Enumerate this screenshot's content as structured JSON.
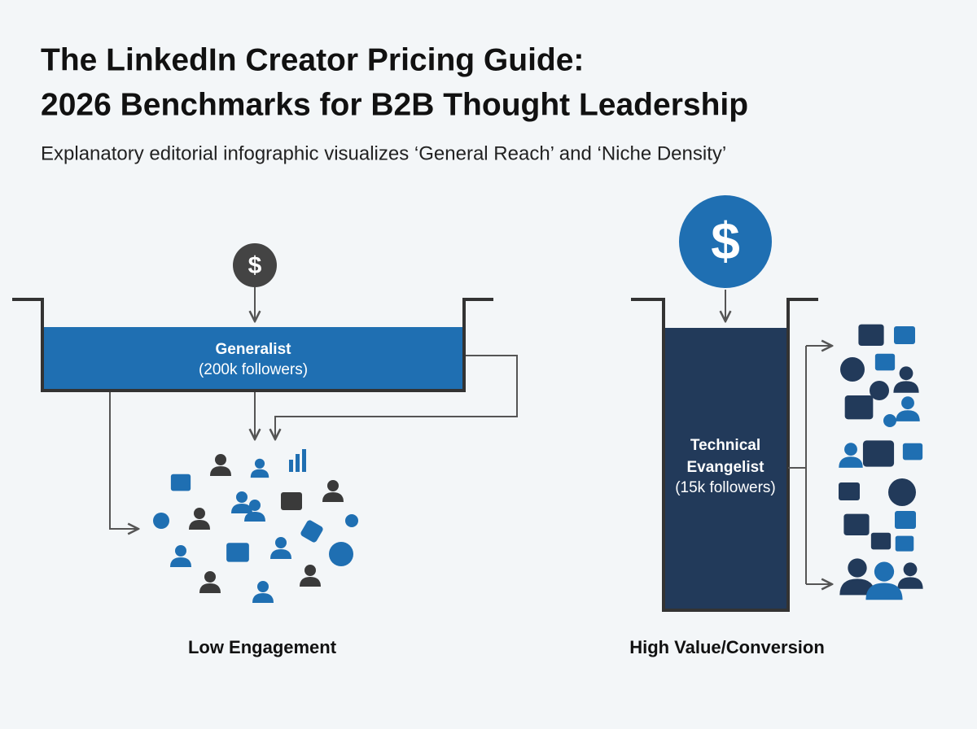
{
  "header": {
    "title_lines": [
      "The LinkedIn Creator Pricing Guide:",
      "2026 Benchmarks for B2B Thought Leadership"
    ],
    "subtitle": "Explanatory editorial infographic visualizes ‘General Reach’ and ‘Niche Density’"
  },
  "left": {
    "icon": "$",
    "label": "Generalist",
    "followers": "(200k followers)",
    "caption": "Low Engagement"
  },
  "right": {
    "icon": "$",
    "label_lines": [
      "Technical",
      "Evangelist"
    ],
    "followers": "(15k followers)",
    "caption": "High Value/Conversion"
  }
}
